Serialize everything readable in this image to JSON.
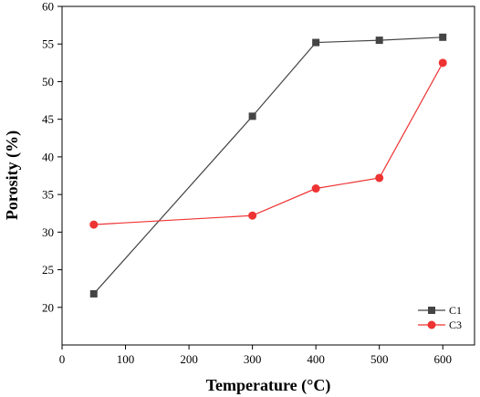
{
  "chart_data": {
    "type": "line",
    "title": "",
    "xlabel": "Temperature (°C)",
    "ylabel": "Porosity (%)",
    "xlim": [
      0,
      650
    ],
    "ylim": [
      15,
      60
    ],
    "xticks": [
      0,
      100,
      200,
      300,
      400,
      500,
      600
    ],
    "yticks": [
      20,
      25,
      30,
      35,
      40,
      45,
      50,
      55,
      60
    ],
    "x": [
      50,
      300,
      400,
      500,
      600
    ],
    "series": [
      {
        "name": "C1",
        "color": "#444444",
        "marker": "square",
        "values": [
          21.8,
          45.4,
          55.2,
          55.5,
          55.9
        ]
      },
      {
        "name": "C3",
        "color": "#ee3333",
        "marker": "circle",
        "values": [
          31.0,
          32.2,
          35.8,
          37.2,
          52.5
        ]
      }
    ],
    "legend": "bottom-right",
    "grid": false
  }
}
